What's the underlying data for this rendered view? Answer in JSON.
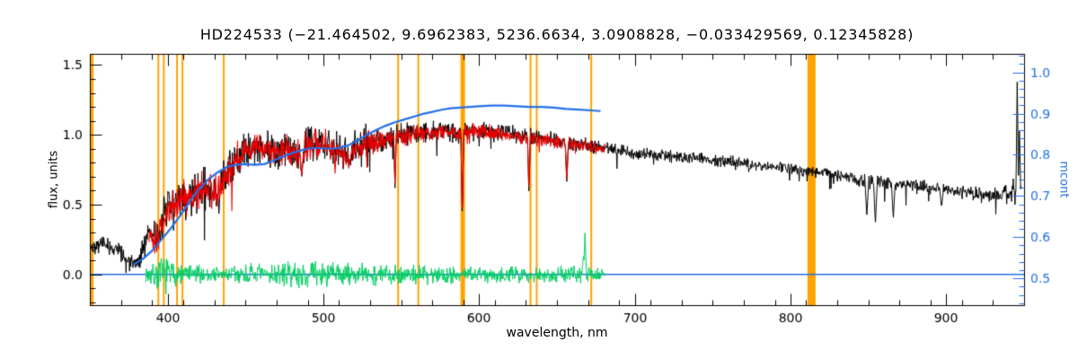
{
  "title": "HD224533   (−21.464502, 9.6962383, 5236.6634, 3.0908828, −0.033429569, 0.12345828)",
  "colors": {
    "background": "#ffffff",
    "frame": "#000000",
    "observed": "#000000",
    "fit": "#e80000",
    "residual": "#00cf60",
    "continuum": "#2470e8",
    "marker": "#ffa300"
  },
  "plot": {
    "x_axis": {
      "label": "wavelength, nm",
      "min": 350,
      "max": 950,
      "majors": [
        400,
        500,
        600,
        700,
        800,
        900
      ],
      "tick_labels": [
        "400",
        "500",
        "600",
        "700",
        "800",
        "900"
      ],
      "minor_step": 20
    },
    "y_left": {
      "label": "flux, units",
      "min": -0.22,
      "max": 1.58,
      "majors": [
        0.0,
        0.5,
        1.0,
        1.5
      ],
      "tick_labels": [
        "0.0",
        "0.5",
        "1.0",
        "1.5"
      ],
      "minor_step": 0.1
    },
    "y_right": {
      "label": "mcont",
      "min": 0.435,
      "max": 1.045,
      "majors": [
        0.5,
        0.6,
        0.7,
        0.8,
        0.9,
        1.0
      ],
      "tick_labels": [
        "0.5",
        "0.6",
        "0.7",
        "0.8",
        "0.9",
        "1.0"
      ],
      "minor_step": 0.02,
      "color": "#2470e8"
    }
  },
  "chart_data": {
    "type": "line",
    "title": "HD224533",
    "params": [
      -21.464502,
      9.6962383,
      5236.6634,
      3.0908828,
      -0.033429569,
      0.12345828
    ],
    "xlabel": "wavelength, nm",
    "ylabel_left": "flux, units",
    "ylabel_right": "mcont",
    "xlim": [
      350,
      950
    ],
    "ylim_left": [
      -0.22,
      1.58
    ],
    "ylim_right": [
      0.435,
      1.045
    ],
    "vlines": {
      "color": "#ffa300",
      "positions": [
        {
          "x": 351.5,
          "w": 3
        },
        {
          "x": 394,
          "w": 2
        },
        {
          "x": 397.5,
          "w": 2
        },
        {
          "x": 406,
          "w": 2
        },
        {
          "x": 409.5,
          "w": 2
        },
        {
          "x": 436,
          "w": 2
        },
        {
          "x": 548,
          "w": 2
        },
        {
          "x": 561,
          "w": 2
        },
        {
          "x": 589.5,
          "w": 5
        },
        {
          "x": 633,
          "w": 2
        },
        {
          "x": 637,
          "w": 2
        },
        {
          "x": 672,
          "w": 2
        },
        {
          "x": 813.5,
          "w": 9
        }
      ]
    },
    "series": [
      {
        "name": "zero-line",
        "kind": "line",
        "color": "#2470e8",
        "line_width": 1.4,
        "points": [
          [
            350,
            0.0
          ],
          [
            950,
            0.0
          ]
        ]
      },
      {
        "name": "residual",
        "kind": "noisy",
        "color": "#00cf60",
        "seed": 7,
        "range": [
          386,
          681
        ],
        "line_width": 1,
        "anchors": [
          [
            386,
            0
          ],
          [
            681,
            0
          ]
        ],
        "noise": [
          [
            386,
            0.04
          ],
          [
            392,
            0.09
          ],
          [
            398,
            0.1
          ],
          [
            405,
            0.07
          ],
          [
            415,
            0.055
          ],
          [
            430,
            0.05
          ],
          [
            445,
            0.055
          ],
          [
            460,
            0.06
          ],
          [
            475,
            0.065
          ],
          [
            490,
            0.07
          ],
          [
            505,
            0.075
          ],
          [
            520,
            0.065
          ],
          [
            535,
            0.06
          ],
          [
            550,
            0.055
          ],
          [
            565,
            0.055
          ],
          [
            580,
            0.055
          ],
          [
            595,
            0.05
          ],
          [
            610,
            0.045
          ],
          [
            625,
            0.045
          ],
          [
            640,
            0.045
          ],
          [
            655,
            0.05
          ],
          [
            665,
            0.055
          ],
          [
            675,
            0.04
          ],
          [
            681,
            0.035
          ]
        ],
        "peaks": [
          [
            668,
            0.31,
            0.9
          ],
          [
            667,
            0.15,
            0.8
          ]
        ]
      },
      {
        "name": "observed-spectrum",
        "kind": "noisy",
        "color": "#000000",
        "seed": 42,
        "range": [
          350,
          948.5
        ],
        "line_width": 1,
        "spike_prob": 0.015,
        "anchors": [
          [
            350,
            0.2
          ],
          [
            358,
            0.22
          ],
          [
            364,
            0.19
          ],
          [
            370,
            0.16
          ],
          [
            374,
            0.1
          ],
          [
            378,
            0.06
          ],
          [
            381,
            0.08
          ],
          [
            384,
            0.18
          ],
          [
            388,
            0.3
          ],
          [
            392,
            0.26
          ],
          [
            396,
            0.33
          ],
          [
            400,
            0.48
          ],
          [
            404,
            0.5
          ],
          [
            408,
            0.52
          ],
          [
            413,
            0.56
          ],
          [
            418,
            0.58
          ],
          [
            423,
            0.62
          ],
          [
            428,
            0.6
          ],
          [
            432,
            0.56
          ],
          [
            436,
            0.66
          ],
          [
            440,
            0.76
          ],
          [
            445,
            0.84
          ],
          [
            450,
            0.88
          ],
          [
            455,
            0.9
          ],
          [
            460,
            0.92
          ],
          [
            466,
            0.9
          ],
          [
            472,
            0.88
          ],
          [
            478,
            0.91
          ],
          [
            484,
            0.86
          ],
          [
            490,
            0.93
          ],
          [
            496,
            0.94
          ],
          [
            502,
            0.92
          ],
          [
            508,
            0.89
          ],
          [
            514,
            0.85
          ],
          [
            520,
            0.92
          ],
          [
            526,
            0.95
          ],
          [
            532,
            0.96
          ],
          [
            540,
            0.97
          ],
          [
            548,
            1.0
          ],
          [
            556,
            1.01
          ],
          [
            564,
            1.02
          ],
          [
            572,
            1.03
          ],
          [
            580,
            1.03
          ],
          [
            588,
            1.0
          ],
          [
            596,
            1.04
          ],
          [
            604,
            1.03
          ],
          [
            612,
            1.02
          ],
          [
            620,
            1.01
          ],
          [
            628,
            0.99
          ],
          [
            636,
            0.98
          ],
          [
            644,
            0.97
          ],
          [
            652,
            0.95
          ],
          [
            660,
            0.94
          ],
          [
            668,
            0.93
          ],
          [
            676,
            0.91
          ],
          [
            684,
            0.9
          ],
          [
            692,
            0.88
          ],
          [
            700,
            0.87
          ],
          [
            710,
            0.86
          ],
          [
            720,
            0.85
          ],
          [
            730,
            0.84
          ],
          [
            740,
            0.83
          ],
          [
            750,
            0.82
          ],
          [
            760,
            0.81
          ],
          [
            770,
            0.8
          ],
          [
            780,
            0.78
          ],
          [
            790,
            0.77
          ],
          [
            800,
            0.75
          ],
          [
            810,
            0.74
          ],
          [
            820,
            0.73
          ],
          [
            830,
            0.71
          ],
          [
            840,
            0.69
          ],
          [
            850,
            0.67
          ],
          [
            860,
            0.66
          ],
          [
            870,
            0.65
          ],
          [
            880,
            0.64
          ],
          [
            890,
            0.62
          ],
          [
            900,
            0.61
          ],
          [
            910,
            0.59
          ],
          [
            920,
            0.58
          ],
          [
            930,
            0.57
          ],
          [
            940,
            0.56
          ],
          [
            945,
            0.58
          ],
          [
            948.5,
            0.62
          ]
        ],
        "noise": [
          [
            350,
            0.045
          ],
          [
            365,
            0.05
          ],
          [
            378,
            0.05
          ],
          [
            386,
            0.07
          ],
          [
            394,
            0.11
          ],
          [
            402,
            0.13
          ],
          [
            412,
            0.13
          ],
          [
            422,
            0.12
          ],
          [
            432,
            0.13
          ],
          [
            442,
            0.11
          ],
          [
            452,
            0.09
          ],
          [
            462,
            0.095
          ],
          [
            472,
            0.1
          ],
          [
            482,
            0.1
          ],
          [
            492,
            0.105
          ],
          [
            502,
            0.1
          ],
          [
            512,
            0.1
          ],
          [
            522,
            0.09
          ],
          [
            532,
            0.085
          ],
          [
            542,
            0.07
          ],
          [
            552,
            0.065
          ],
          [
            562,
            0.06
          ],
          [
            572,
            0.055
          ],
          [
            582,
            0.055
          ],
          [
            592,
            0.05
          ],
          [
            602,
            0.05
          ],
          [
            612,
            0.045
          ],
          [
            622,
            0.045
          ],
          [
            632,
            0.05
          ],
          [
            642,
            0.045
          ],
          [
            652,
            0.045
          ],
          [
            662,
            0.04
          ],
          [
            672,
            0.04
          ],
          [
            682,
            0.038
          ],
          [
            700,
            0.035
          ],
          [
            720,
            0.033
          ],
          [
            740,
            0.032
          ],
          [
            760,
            0.032
          ],
          [
            780,
            0.03
          ],
          [
            800,
            0.03
          ],
          [
            820,
            0.032
          ],
          [
            840,
            0.04
          ],
          [
            860,
            0.045
          ],
          [
            880,
            0.035
          ],
          [
            900,
            0.035
          ],
          [
            920,
            0.038
          ],
          [
            935,
            0.045
          ],
          [
            948.5,
            0.1
          ]
        ],
        "dips": [
          [
            486.1,
            0.7,
            1.2
          ],
          [
            517,
            0.8,
            1.2
          ],
          [
            546,
            0.62,
            0.8
          ],
          [
            589.2,
            0.4,
            0.9
          ],
          [
            632,
            0.58,
            0.9
          ],
          [
            656.3,
            0.66,
            1.0
          ],
          [
            849,
            0.42,
            1.2
          ],
          [
            854.5,
            0.36,
            1.2
          ],
          [
            866,
            0.4,
            1.2
          ],
          [
            897,
            0.48,
            1.2
          ]
        ],
        "peaks": [
          [
            945.6,
            1.42,
            0.8
          ],
          [
            947,
            1.05,
            0.8
          ]
        ]
      },
      {
        "name": "fit-spectrum",
        "kind": "noisy",
        "color": "#e80000",
        "seed": 1337,
        "range": [
          388,
          681
        ],
        "line_width": 1.1,
        "spike_prob": 0.012,
        "anchors_ref": "observed-spectrum",
        "noise_scale": 0.85,
        "offset": -0.005,
        "dips": [
          [
            486.1,
            0.7,
            1.2
          ],
          [
            517,
            0.8,
            1.2
          ],
          [
            546,
            0.62,
            0.8
          ],
          [
            589.2,
            0.4,
            0.9
          ],
          [
            632,
            0.58,
            0.9
          ],
          [
            656.3,
            0.66,
            1.0
          ]
        ]
      },
      {
        "name": "continuum-mcont",
        "kind": "line",
        "color": "#2470e8",
        "line_width": 2.2,
        "points": [
          [
            378,
            0.07
          ],
          [
            384,
            0.11
          ],
          [
            390,
            0.17
          ],
          [
            396,
            0.25
          ],
          [
            402,
            0.33
          ],
          [
            408,
            0.42
          ],
          [
            414,
            0.52
          ],
          [
            420,
            0.61
          ],
          [
            426,
            0.68
          ],
          [
            432,
            0.73
          ],
          [
            438,
            0.77
          ],
          [
            444,
            0.785
          ],
          [
            450,
            0.79
          ],
          [
            456,
            0.785
          ],
          [
            462,
            0.79
          ],
          [
            468,
            0.815
          ],
          [
            474,
            0.845
          ],
          [
            480,
            0.87
          ],
          [
            486,
            0.89
          ],
          [
            492,
            0.905
          ],
          [
            498,
            0.905
          ],
          [
            504,
            0.9
          ],
          [
            510,
            0.905
          ],
          [
            516,
            0.925
          ],
          [
            522,
            0.96
          ],
          [
            528,
            1.0
          ],
          [
            534,
            1.035
          ],
          [
            540,
            1.065
          ],
          [
            546,
            1.09
          ],
          [
            552,
            1.11
          ],
          [
            558,
            1.13
          ],
          [
            564,
            1.15
          ],
          [
            570,
            1.165
          ],
          [
            576,
            1.18
          ],
          [
            582,
            1.19
          ],
          [
            588,
            1.195
          ],
          [
            594,
            1.2
          ],
          [
            600,
            1.205
          ],
          [
            608,
            1.21
          ],
          [
            616,
            1.21
          ],
          [
            624,
            1.205
          ],
          [
            632,
            1.2
          ],
          [
            640,
            1.2
          ],
          [
            648,
            1.195
          ],
          [
            656,
            1.185
          ],
          [
            664,
            1.18
          ],
          [
            672,
            1.175
          ],
          [
            678,
            1.17
          ]
        ]
      }
    ]
  }
}
